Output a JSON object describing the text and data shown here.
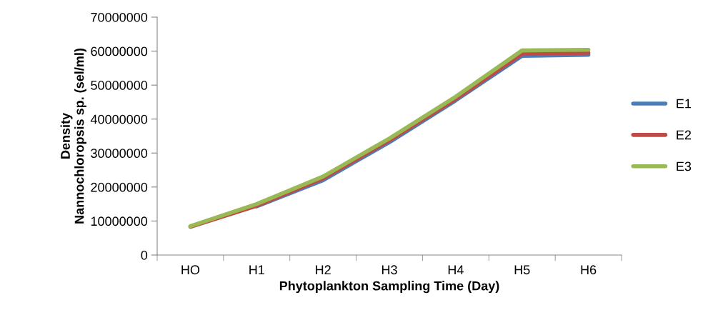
{
  "chart_data": {
    "type": "line",
    "xlabel": "Phytoplankton Sampling Time (Day)",
    "ylabel": "Density\nNannochloropsis sp. (sel/ml)",
    "categories": [
      "HO",
      "H1",
      "H2",
      "H3",
      "H4",
      "H5",
      "H6"
    ],
    "series": [
      {
        "name": "E1",
        "color": "#4a7ebb",
        "values": [
          null,
          14300000,
          22000000,
          33200000,
          45500000,
          58600000,
          58900000
        ]
      },
      {
        "name": "E2",
        "color": "#be4b48",
        "values": [
          8300000,
          14500000,
          22500000,
          33700000,
          45900000,
          59200000,
          59500000
        ]
      },
      {
        "name": "E3",
        "color": "#98b954",
        "values": [
          8500000,
          15000000,
          23100000,
          34300000,
          46600000,
          60200000,
          60400000
        ]
      }
    ],
    "ylim": [
      0,
      70000000
    ],
    "yticks": [
      0,
      10000000,
      20000000,
      30000000,
      40000000,
      50000000,
      60000000,
      70000000
    ],
    "grid": false,
    "legend": "right",
    "marker": "none",
    "line_style": "solid"
  }
}
